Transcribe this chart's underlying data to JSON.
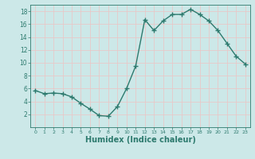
{
  "x": [
    0,
    1,
    2,
    3,
    4,
    5,
    6,
    7,
    8,
    9,
    10,
    11,
    12,
    13,
    14,
    15,
    16,
    17,
    18,
    19,
    20,
    21,
    22,
    23
  ],
  "y": [
    5.7,
    5.2,
    5.3,
    5.2,
    4.7,
    3.7,
    2.8,
    1.8,
    1.7,
    3.2,
    6.0,
    9.5,
    16.7,
    15.0,
    16.5,
    17.5,
    17.5,
    18.3,
    17.5,
    16.5,
    15.0,
    13.0,
    11.0,
    9.8
  ],
  "line_color": "#2d7a6e",
  "marker": "+",
  "markersize": 4,
  "linewidth": 1.0,
  "xlabel": "Humidex (Indice chaleur)",
  "xlabel_fontsize": 7,
  "bg_color": "#cce8e8",
  "grid_color": "#e8c8c8",
  "tick_color": "#2d7a6e",
  "label_color": "#2d7a6e",
  "xlim": [
    -0.5,
    23.5
  ],
  "ylim": [
    0,
    19
  ],
  "yticks": [
    2,
    4,
    6,
    8,
    10,
    12,
    14,
    16,
    18
  ],
  "xticks": [
    0,
    1,
    2,
    3,
    4,
    5,
    6,
    7,
    8,
    9,
    10,
    11,
    12,
    13,
    14,
    15,
    16,
    17,
    18,
    19,
    20,
    21,
    22,
    23
  ]
}
